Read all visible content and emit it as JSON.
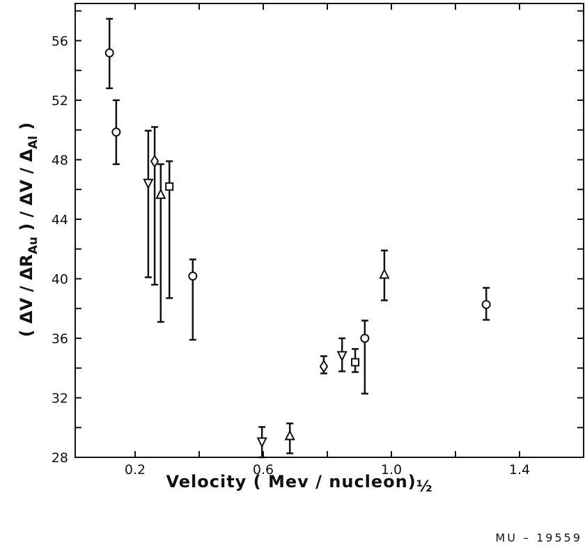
{
  "chart_data": {
    "type": "scatter",
    "ylabel_parts": [
      "( ΔV / ΔR",
      "Au",
      " ) / ΔV / Δ",
      "Al",
      " )"
    ],
    "xlabel": "Velocity  ( Mev / nucleon)",
    "xlabel_exp": "½",
    "annotation": "MU – 19559",
    "xlim": [
      0.013,
      1.6
    ],
    "ylim": [
      28,
      58.5
    ],
    "xticks": [
      0.2,
      0.6,
      {
        "value": 1,
        "label": "1.0"
      },
      1.4
    ],
    "xminorticks": [
      0.4,
      0.8,
      1.2
    ],
    "yticks": [
      28,
      32,
      36,
      40,
      44,
      48,
      52,
      56
    ],
    "yminorticks": [
      30,
      34,
      38,
      42,
      46,
      50,
      54,
      58
    ],
    "color": "#111111",
    "series": [
      {
        "marker": "circle",
        "x": [
          0.12,
          0.141,
          0.38,
          0.917,
          1.296
        ],
        "values": [
          55.18,
          49.86,
          40.18,
          36.0,
          38.27
        ],
        "low": [
          52.8,
          47.7,
          35.9,
          32.28,
          37.24
        ],
        "high": [
          57.47,
          52.0,
          41.3,
          37.19,
          39.39
        ]
      },
      {
        "marker": "triangle-down",
        "x": [
          0.241,
          0.596,
          0.846
        ],
        "values": [
          46.44,
          29.06,
          34.86
        ],
        "low": [
          40.1,
          28.0,
          33.78
        ],
        "high": [
          49.95,
          30.04,
          36.0
        ]
      },
      {
        "marker": "diamond",
        "x": [
          0.261,
          0.789
        ],
        "values": [
          47.9,
          34.11
        ],
        "low": [
          39.6,
          33.64
        ],
        "high": [
          50.2,
          34.8
        ]
      },
      {
        "marker": "triangle-up",
        "x": [
          0.28,
          0.683,
          0.978
        ],
        "values": [
          45.65,
          29.43,
          40.28
        ],
        "low": [
          37.1,
          28.27,
          38.55
        ],
        "high": [
          47.7,
          30.28,
          41.9
        ]
      },
      {
        "marker": "square",
        "x": [
          0.307,
          0.887
        ],
        "values": [
          46.2,
          34.39
        ],
        "low": [
          38.7,
          33.73
        ],
        "high": [
          47.9,
          35.28
        ]
      }
    ]
  }
}
